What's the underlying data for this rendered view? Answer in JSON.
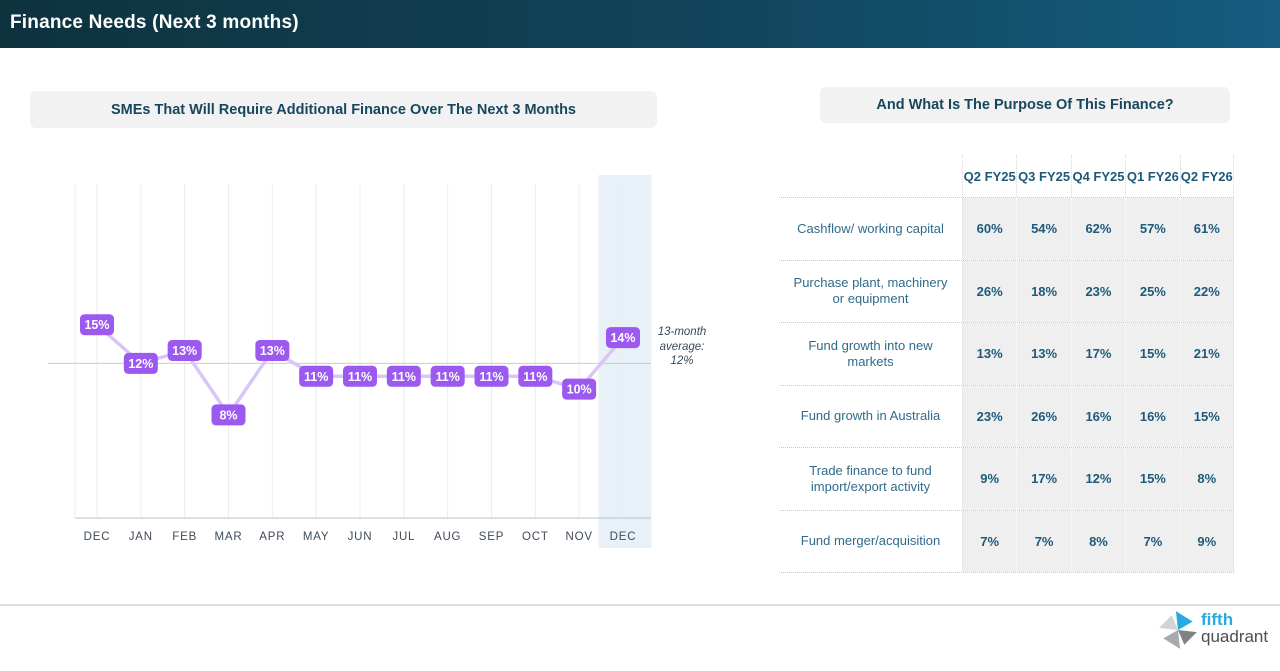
{
  "header": {
    "title": "Finance Needs (Next 3 months)"
  },
  "left_panel": {
    "title": "SMEs That Will Require Additional Finance Over The Next 3 Months"
  },
  "right_panel": {
    "title": "And What Is The Purpose Of This Finance?"
  },
  "chart_data": {
    "type": "line",
    "title": "SMEs That Will Require Additional Finance Over The Next 3 Months",
    "xlabel": "",
    "ylabel": "",
    "categories": [
      "DEC",
      "JAN",
      "FEB",
      "MAR",
      "APR",
      "MAY",
      "JUN",
      "JUL",
      "AUG",
      "SEP",
      "OCT",
      "NOV",
      "DEC"
    ],
    "values": [
      15,
      12,
      13,
      8,
      13,
      11,
      11,
      11,
      11,
      11,
      11,
      10,
      14
    ],
    "labels": [
      "15%",
      "12%",
      "13%",
      "8%",
      "13%",
      "11%",
      "11%",
      "11%",
      "11%",
      "11%",
      "11%",
      "10%",
      "14%"
    ],
    "average": 12,
    "annotation": "13-month\naverage:\n12%",
    "highlight_index": 12,
    "ylim": [
      0,
      26
    ],
    "grid": "vertical",
    "legend": "none",
    "colors": {
      "line": "#d9c6f6",
      "badge": "#9b59f0",
      "badge_text": "#ffffff",
      "grid": "#e9eef2",
      "axis": "#b9c2c8",
      "average_line": "#c9ccd0",
      "highlight_band": "#e8f1f8",
      "tick_text": "#3e4c59"
    }
  },
  "table": {
    "columns": [
      "Q2 FY25",
      "Q3 FY25",
      "Q4 FY25",
      "Q1 FY26",
      "Q2 FY26"
    ],
    "rows": [
      {
        "label": "Cashflow/ working capital",
        "values": [
          "60%",
          "54%",
          "62%",
          "57%",
          "61%"
        ]
      },
      {
        "label": "Purchase plant, machinery or equipment",
        "values": [
          "26%",
          "18%",
          "23%",
          "25%",
          "22%"
        ]
      },
      {
        "label": "Fund growth into new markets",
        "values": [
          "13%",
          "13%",
          "17%",
          "15%",
          "21%"
        ]
      },
      {
        "label": "Fund growth in Australia",
        "values": [
          "23%",
          "26%",
          "16%",
          "16%",
          "15%"
        ]
      },
      {
        "label": "Trade finance to fund import/export activity",
        "values": [
          "9%",
          "17%",
          "12%",
          "15%",
          "8%"
        ]
      },
      {
        "label": "Fund merger/acquisition",
        "values": [
          "7%",
          "7%",
          "8%",
          "7%",
          "9%"
        ]
      }
    ]
  },
  "footer": {
    "logo_line1": "fifth",
    "logo_line2": "quadrant"
  }
}
